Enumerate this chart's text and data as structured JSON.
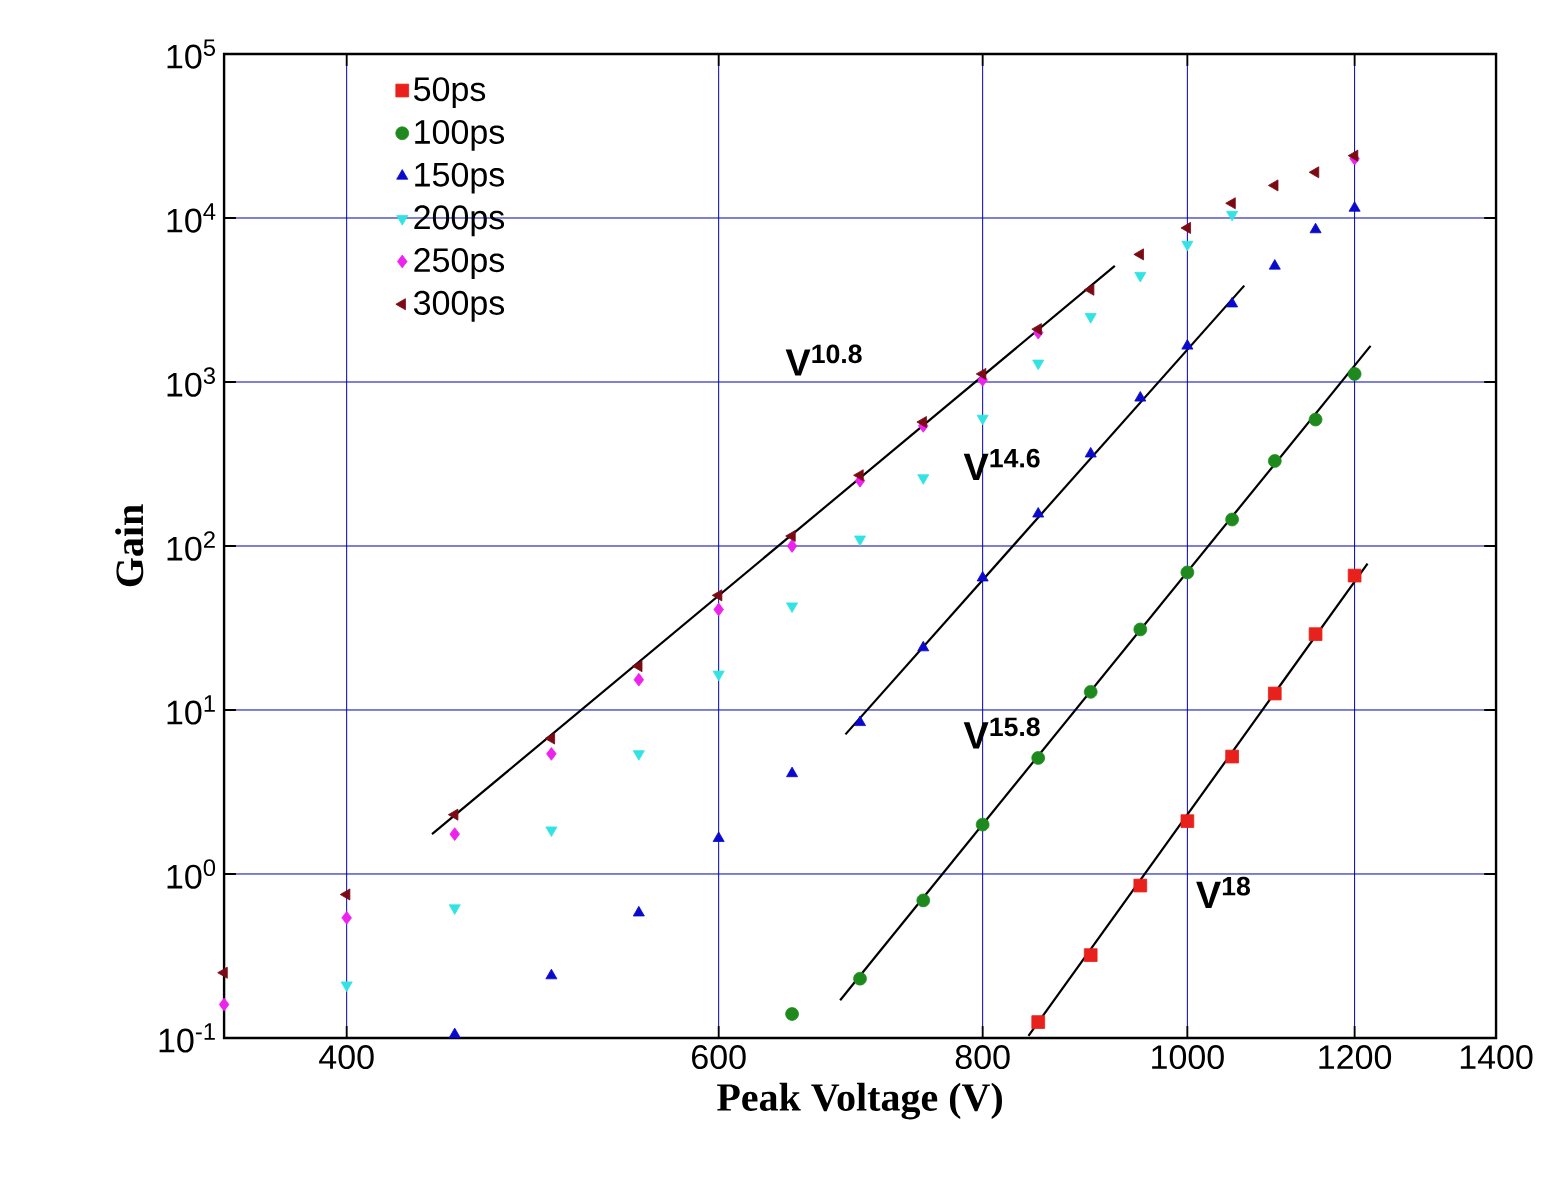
{
  "chart_data": {
    "type": "scatter",
    "xlabel": "Peak Voltage (V)",
    "ylabel": "Gain",
    "log": "xy",
    "grid": true,
    "legend": "top left",
    "xlim": [
      350,
      1400
    ],
    "ylim": [
      0.1,
      100000
    ],
    "xticks": [
      400,
      600,
      800,
      1000,
      1200,
      1400
    ],
    "yticks": [
      {
        "value": 0.1,
        "label": "10$^{-1}$"
      },
      {
        "value": 1,
        "label": "10$^{0}$"
      },
      {
        "value": 10,
        "label": "10$^{1}$"
      },
      {
        "value": 100,
        "label": "10$^{2}$"
      },
      {
        "value": 1000,
        "label": "10$^{3}$"
      },
      {
        "value": 10000,
        "label": "10$^{4}$"
      },
      {
        "value": 100000,
        "label": "10$^{5}$"
      }
    ],
    "x": [
      350,
      400,
      450,
      500,
      550,
      600,
      650,
      700,
      750,
      800,
      850,
      900,
      950,
      1000,
      1050,
      1100,
      1150,
      1200
    ],
    "series": [
      {
        "name": "50ps",
        "color": "#e8211c",
        "marker": "square",
        "values": [
          null,
          null,
          null,
          null,
          null,
          null,
          null,
          null,
          null,
          null,
          0.125,
          0.32,
          0.85,
          2.1,
          5.2,
          12.6,
          29,
          66
        ]
      },
      {
        "name": "100ps",
        "color": "#1e8a1e",
        "marker": "circle",
        "values": [
          null,
          null,
          null,
          null,
          null,
          null,
          0.14,
          0.23,
          0.69,
          2.0,
          5.1,
          12.9,
          31,
          69,
          145,
          330,
          590,
          1120
        ]
      },
      {
        "name": "150ps",
        "color": "#0a0acc",
        "marker": "triangle",
        "values": [
          null,
          null,
          0.105,
          0.24,
          0.58,
          1.65,
          4.1,
          8.4,
          24,
          64,
          157,
          365,
          800,
          1660,
          3000,
          5100,
          8500,
          11500
        ]
      },
      {
        "name": "200ps",
        "color": "#33e3e3",
        "marker": "triangle down",
        "values": [
          null,
          0.21,
          0.62,
          1.85,
          5.4,
          16.5,
          43,
          110,
          260,
          600,
          1300,
          2500,
          4450,
          6900,
          10500,
          null,
          null,
          null
        ]
      },
      {
        "name": "250ps",
        "color": "#ee22ee",
        "marker": "diamond",
        "values": [
          0.16,
          0.54,
          1.75,
          5.4,
          15.3,
          41,
          100,
          250,
          540,
          1030,
          2000,
          null,
          null,
          null,
          null,
          null,
          null,
          23000
        ]
      },
      {
        "name": "300ps",
        "color": "#7a0a14",
        "marker": "triangle left",
        "values": [
          0.25,
          0.75,
          2.3,
          6.7,
          18.5,
          50,
          115,
          270,
          570,
          1120,
          2100,
          3650,
          6000,
          8700,
          12300,
          15800,
          19000,
          24000
        ]
      },
      {
        "type": "line",
        "color": "#000000",
        "marker": "none",
        "x": [
          439,
          924
        ],
        "values": [
          1.75,
          5100
        ]
      },
      {
        "type": "line",
        "color": "#000000",
        "marker": "none",
        "x": [
          689,
          1064
        ],
        "values": [
          7.1,
          3870
        ]
      },
      {
        "type": "line",
        "color": "#000000",
        "marker": "none",
        "x": [
          685,
          1221
        ],
        "values": [
          0.17,
          1660
        ]
      },
      {
        "type": "line",
        "color": "#000000",
        "marker": "none",
        "x": [
          841,
          1217
        ],
        "values": [
          0.103,
          78
        ]
      }
    ],
    "annotations": [
      "V$^{10.8}$",
      "V$^{14.6}$",
      "V$^{15.8}$",
      "V$^{18}$"
    ]
  }
}
